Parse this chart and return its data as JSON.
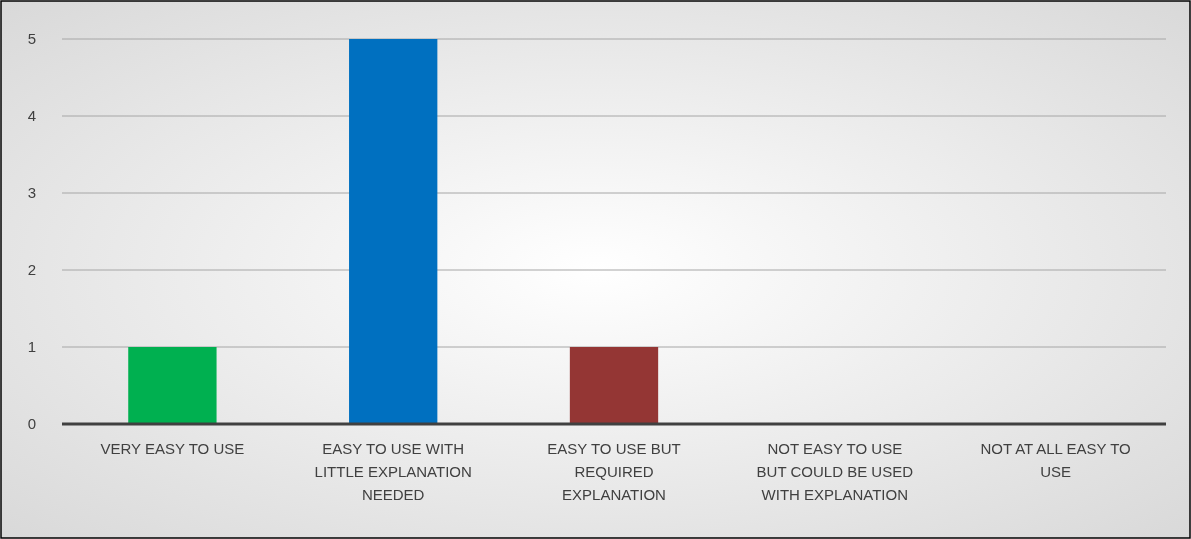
{
  "chart_data": {
    "type": "bar",
    "categories": [
      "VERY EASY TO USE",
      "EASY TO USE WITH LITTLE EXPLANATION NEEDED",
      "EASY TO USE BUT REQUIRED EXPLANATION",
      "NOT EASY TO USE BUT COULD BE USED WITH EXPLANATION",
      "NOT AT ALL EASY TO USE"
    ],
    "values": [
      1,
      5,
      1,
      0,
      0
    ],
    "colors": [
      "#00b050",
      "#0070c0",
      "#943634",
      "#4f81bd",
      "#4f81bd"
    ],
    "ylim": [
      0,
      5
    ],
    "yticks": [
      0,
      1,
      2,
      3,
      4,
      5
    ],
    "grid": "y"
  }
}
